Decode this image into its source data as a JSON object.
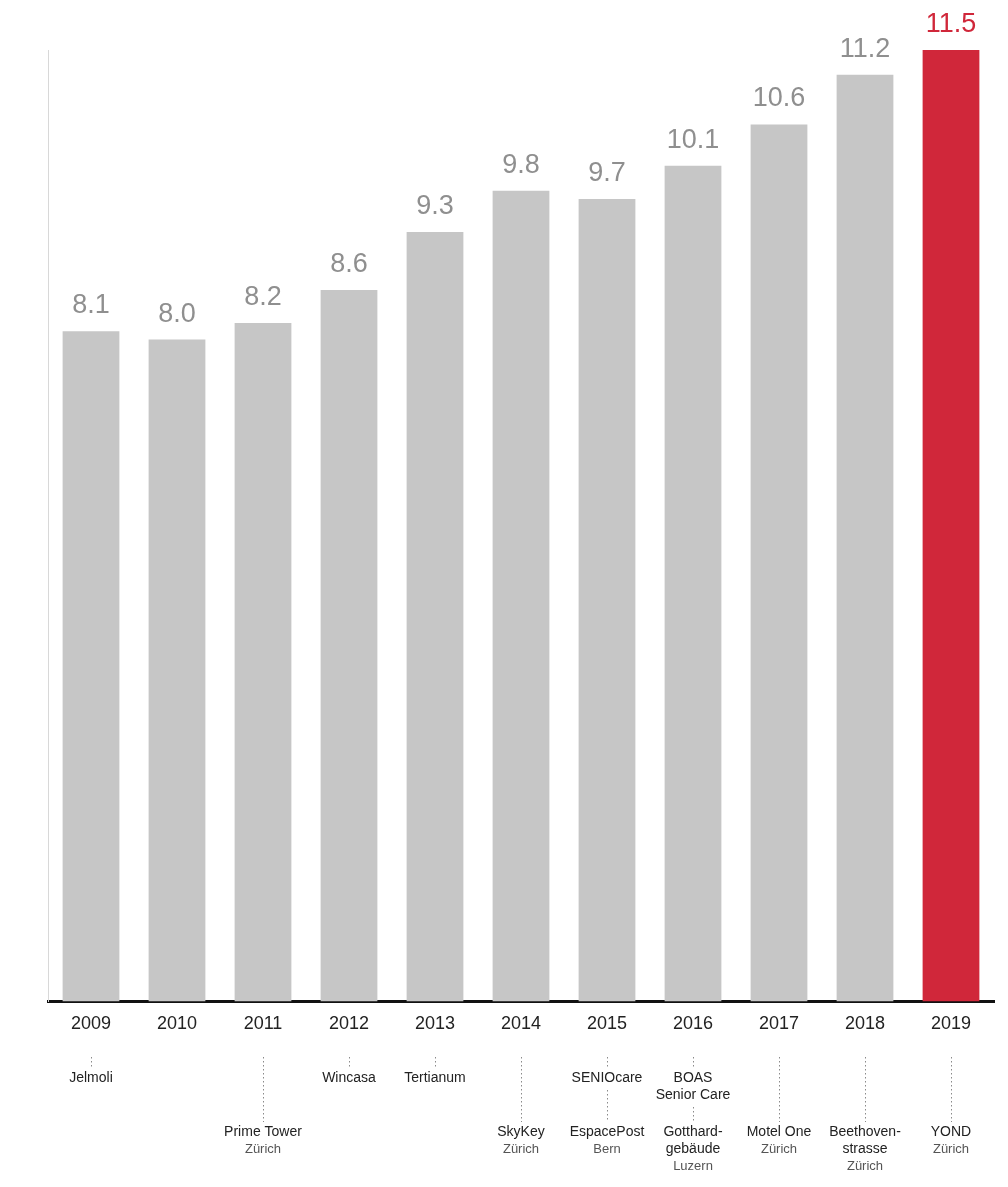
{
  "chart_data": {
    "type": "bar",
    "categories": [
      "2009",
      "2010",
      "2011",
      "2012",
      "2013",
      "2014",
      "2015",
      "2016",
      "2017",
      "2018",
      "2019"
    ],
    "values": [
      8.1,
      8.0,
      8.2,
      8.6,
      9.3,
      9.8,
      9.7,
      10.1,
      10.6,
      11.2,
      11.5
    ],
    "value_labels": [
      "8.1",
      "8.0",
      "8.2",
      "8.6",
      "9.3",
      "9.8",
      "9.7",
      "10.1",
      "10.6",
      "11.2",
      "11.5"
    ],
    "colors": [
      "#c6c6c6",
      "#c6c6c6",
      "#c6c6c6",
      "#c6c6c6",
      "#c6c6c6",
      "#c6c6c6",
      "#c6c6c6",
      "#c6c6c6",
      "#c6c6c6",
      "#c6c6c6",
      "#d0273a"
    ],
    "ylim": [
      0,
      11.5
    ],
    "tick_labels": "x",
    "data_labels": true,
    "grid": false,
    "annotations": [
      {
        "category": "2009",
        "name": [
          "Jelmoli"
        ]
      },
      {
        "category": "2011",
        "name": [
          "Prime Tower"
        ],
        "place": "Zürich"
      },
      {
        "category": "2012",
        "name": [
          "Wincasa"
        ]
      },
      {
        "category": "2013",
        "name": [
          "Tertianum"
        ]
      },
      {
        "category": "2014",
        "name": [
          "SkyKey"
        ],
        "place": "Zürich"
      },
      {
        "category": "2015",
        "name": [
          "SENIOcare"
        ]
      },
      {
        "category": "2015",
        "name": [
          "EspacePost"
        ],
        "place": "Bern"
      },
      {
        "category": "2016",
        "name": [
          "BOAS",
          "Senior Care"
        ]
      },
      {
        "category": "2016",
        "name": [
          "Gotthard-",
          "gebäude"
        ],
        "place": "Luzern"
      },
      {
        "category": "2017",
        "name": [
          "Motel One"
        ],
        "place": "Zürich"
      },
      {
        "category": "2018",
        "name": [
          "Beethoven-",
          "strasse"
        ],
        "place": "Zürich"
      },
      {
        "category": "2019",
        "name": [
          "YOND"
        ],
        "place": "Zürich"
      }
    ]
  }
}
